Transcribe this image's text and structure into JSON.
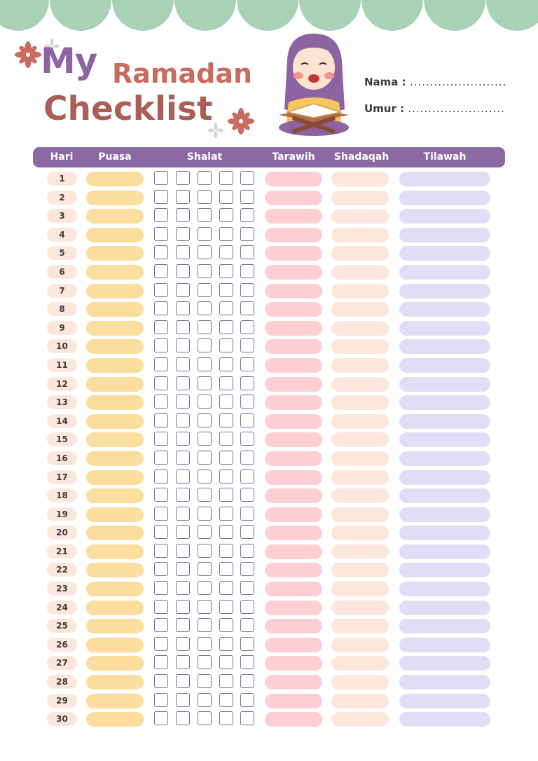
{
  "title": {
    "line1": "My",
    "line2": "Ramadan",
    "line3": "Checklist"
  },
  "fields": [
    {
      "label": "Nama :",
      "dots": "........................"
    },
    {
      "label": "Umur :",
      "dots": "........................"
    }
  ],
  "columns": {
    "hari": "Hari",
    "puasa": "Puasa",
    "shalat": "Shalat",
    "tarawih": "Tarawih",
    "shadaqah": "Shadaqah",
    "tilawah": "Tilawah"
  },
  "days": [
    "1",
    "2",
    "3",
    "4",
    "5",
    "6",
    "7",
    "8",
    "9",
    "10",
    "11",
    "12",
    "13",
    "14",
    "15",
    "16",
    "17",
    "18",
    "19",
    "20",
    "21",
    "22",
    "23",
    "24",
    "25",
    "26",
    "27",
    "28",
    "29",
    "30"
  ],
  "shalat_boxes_per_day": 5,
  "colors": {
    "scallop": "#a8d1b6",
    "header": "#8b6aa3",
    "puasa": "#fddd9e",
    "tarawih": "#fdcfd4",
    "shadaqah": "#fde6dc",
    "tilawah": "#e2dcf4",
    "day": "#fde7dc"
  }
}
